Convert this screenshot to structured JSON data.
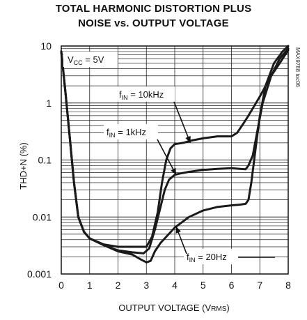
{
  "chart_data": {
    "type": "line",
    "title_line1": "TOTAL HARMONIC DISTORTION PLUS",
    "title_line2": "NOISE vs. OUTPUT VOLTAGE",
    "xlabel_main": "OUTPUT VOLTAGE (V",
    "xlabel_sub": "RMS",
    "xlabel_end": ")",
    "ylabel": "THD+N (%)",
    "xlim": [
      0,
      8
    ],
    "ylim": [
      0.001,
      10
    ],
    "yscale": "log",
    "grid": true,
    "x_ticks": [
      "0",
      "1",
      "2",
      "3",
      "4",
      "5",
      "6",
      "7",
      "8"
    ],
    "y_ticks": [
      "0.001",
      "0.01",
      "0.1",
      "1",
      "10"
    ],
    "condition": {
      "main": "V",
      "sub": "CC",
      "rest": " = 5V"
    },
    "side_label": "MAX9788 toc06",
    "series": [
      {
        "label_main": "f",
        "label_sub": "IN",
        "label_rest": " = 10kHz",
        "x": [
          0.0,
          0.15,
          0.3,
          0.45,
          0.6,
          0.8,
          1.0,
          1.5,
          2.0,
          2.5,
          3.0,
          3.2,
          3.4,
          3.55,
          3.7,
          3.85,
          4.0,
          4.3,
          4.6,
          5.0,
          5.5,
          5.8,
          6.0,
          6.2,
          6.4,
          6.6,
          7.0,
          7.4,
          7.7,
          8.0
        ],
        "y": [
          8,
          1.5,
          0.25,
          0.04,
          0.01,
          0.0055,
          0.0042,
          0.0033,
          0.003,
          0.003,
          0.003,
          0.0045,
          0.012,
          0.04,
          0.1,
          0.16,
          0.19,
          0.2,
          0.22,
          0.24,
          0.26,
          0.26,
          0.26,
          0.3,
          0.42,
          0.6,
          1.3,
          3.0,
          5.0,
          8.5
        ]
      },
      {
        "label_main": "f",
        "label_sub": "IN",
        "label_rest": " = 1kHz",
        "x": [
          0.0,
          0.15,
          0.3,
          0.45,
          0.6,
          0.8,
          1.0,
          1.5,
          2.0,
          2.5,
          2.9,
          3.1,
          3.3,
          3.5,
          3.65,
          3.8,
          4.0,
          4.2,
          4.5,
          5.0,
          5.5,
          6.0,
          6.3,
          6.5,
          6.6,
          6.75,
          6.9,
          7.1,
          7.4,
          7.7,
          8.0
        ],
        "y": [
          8,
          1.5,
          0.25,
          0.04,
          0.01,
          0.0055,
          0.0042,
          0.0032,
          0.0026,
          0.0024,
          0.0023,
          0.0028,
          0.006,
          0.015,
          0.03,
          0.045,
          0.055,
          0.058,
          0.062,
          0.067,
          0.07,
          0.072,
          0.07,
          0.069,
          0.08,
          0.12,
          0.3,
          1.0,
          3.0,
          6.0,
          9.0
        ]
      },
      {
        "label_main": "f",
        "label_sub": "IN",
        "label_rest": " = 20Hz",
        "x": [
          0.0,
          0.15,
          0.3,
          0.45,
          0.6,
          0.8,
          1.0,
          1.5,
          2.0,
          2.5,
          2.8,
          3.0,
          3.15,
          3.3,
          3.5,
          4.0,
          4.5,
          5.0,
          5.5,
          6.0,
          6.3,
          6.5,
          6.6,
          6.7,
          6.8,
          6.9,
          7.0,
          7.2,
          7.5,
          7.8,
          8.0
        ],
        "y": [
          8,
          1.5,
          0.25,
          0.04,
          0.01,
          0.0055,
          0.0042,
          0.0032,
          0.0025,
          0.0022,
          0.0018,
          0.0016,
          0.0017,
          0.0025,
          0.0035,
          0.0065,
          0.01,
          0.013,
          0.015,
          0.016,
          0.0165,
          0.017,
          0.02,
          0.04,
          0.1,
          0.25,
          0.6,
          2.0,
          5.0,
          8.0,
          10.0
        ]
      }
    ]
  }
}
